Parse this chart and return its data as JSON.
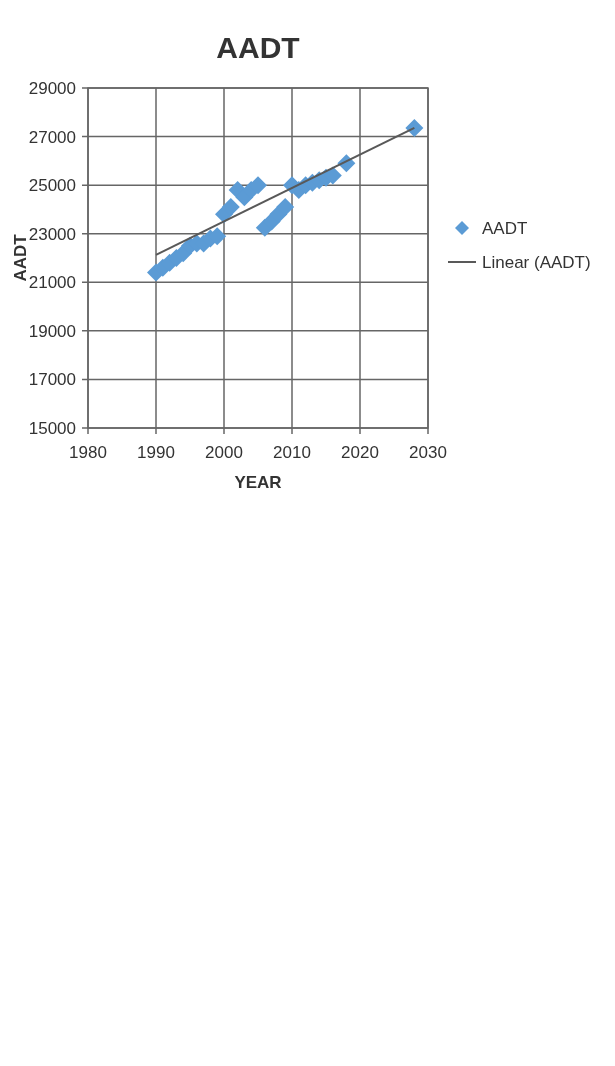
{
  "chart_data": {
    "type": "scatter",
    "title": "AADT",
    "xlabel": "YEAR",
    "ylabel": "AADT",
    "xlim": [
      1980,
      2030
    ],
    "xticks": [
      1980,
      1990,
      2000,
      2010,
      2020,
      2030
    ],
    "ylim": [
      15000,
      29000
    ],
    "yticks": [
      15000,
      17000,
      19000,
      21000,
      23000,
      25000,
      27000,
      29000
    ],
    "grid": true,
    "legend": "right",
    "marker": "diamond",
    "series": [
      {
        "name": "AADT",
        "color": "#5b9bd5",
        "x": [
          1990,
          1991,
          1992,
          1993,
          1994,
          1995,
          1996,
          1997,
          1998,
          1999,
          2000,
          2001,
          2002,
          2003,
          2004,
          2005,
          2006,
          2007,
          2008,
          2009,
          2010,
          2011,
          2012,
          2013,
          2014,
          2015,
          2016,
          2018,
          2028
        ],
        "values": [
          21400,
          21600,
          21800,
          22000,
          22200,
          22500,
          22600,
          22600,
          22800,
          22900,
          23800,
          24100,
          24800,
          24500,
          24800,
          25000,
          23250,
          23500,
          23800,
          24100,
          25000,
          24800,
          25000,
          25100,
          25200,
          25300,
          25400,
          25900,
          27350
        ]
      },
      {
        "name": "Linear (AADT)",
        "type": "line",
        "color": "#595959",
        "marker": "none",
        "x": [
          1990,
          2028
        ],
        "values": [
          22130,
          27360
        ]
      }
    ]
  }
}
